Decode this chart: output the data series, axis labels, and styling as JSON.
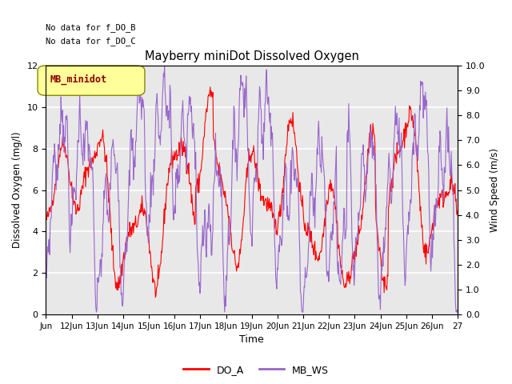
{
  "title": "Mayberry miniDot Dissolved Oxygen",
  "xlabel": "Time",
  "ylabel_left": "Dissolved Oxygen (mg/l)",
  "ylabel_right": "Wind Speed (m/s)",
  "annotation_line1": "No data for f_DO_B",
  "annotation_line2": "No data for f_DO_C",
  "legend_box_label": "MB_minidot",
  "xlim_days": [
    11,
    27
  ],
  "ylim_left": [
    0,
    12
  ],
  "ylim_right": [
    0,
    10
  ],
  "yticks_left": [
    0,
    2,
    4,
    6,
    8,
    10,
    12
  ],
  "yticks_right_vals": [
    0.0,
    1.0,
    2.0,
    3.0,
    4.0,
    5.0,
    6.0,
    7.0,
    8.0,
    9.0,
    10.0
  ],
  "xtick_labels": [
    "Jun",
    "12Jun",
    "13Jun",
    "14Jun",
    "15Jun",
    "16Jun",
    "17Jun",
    "18Jun",
    "19Jun",
    "20Jun",
    "21Jun",
    "22Jun",
    "23Jun",
    "24Jun",
    "25Jun",
    "26Jun",
    "27"
  ],
  "xtick_positions": [
    11,
    12,
    13,
    14,
    15,
    16,
    17,
    18,
    19,
    20,
    21,
    22,
    23,
    24,
    25,
    26,
    27
  ],
  "color_DO_A": "#ff0000",
  "color_MB_WS": "#9966cc",
  "bg_color": "#e8e8e8",
  "grid_color": "#ffffff",
  "legend_box_facecolor": "#ffff99",
  "legend_box_edgecolor": "#888800",
  "legend_label_color": "#8B0000",
  "figsize": [
    6.4,
    4.8
  ],
  "dpi": 100
}
